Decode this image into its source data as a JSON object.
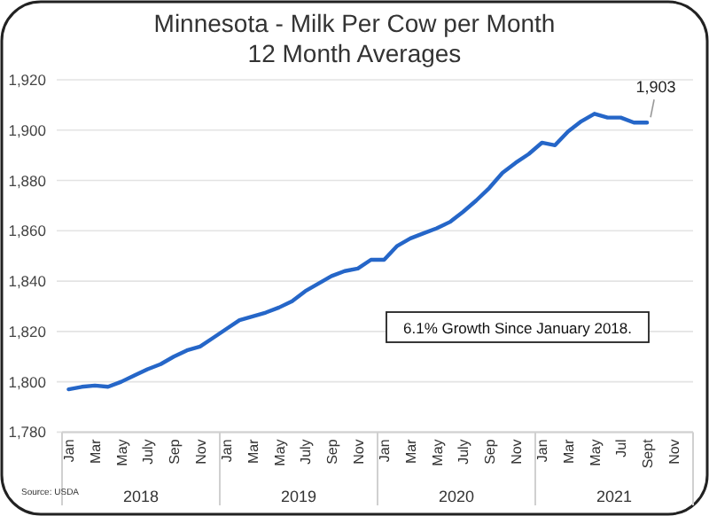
{
  "chart_data": {
    "type": "line",
    "title": "Minnesota - Milk Per Cow per Month\n12 Month Averages",
    "categories": [
      "Jan",
      null,
      "Mar",
      null,
      "May",
      null,
      "July",
      null,
      "Sep",
      null,
      "Nov",
      null,
      "Jan",
      null,
      "Mar",
      null,
      "May",
      null,
      "July",
      null,
      "Sep",
      null,
      "Nov",
      null,
      "Jan",
      null,
      "Mar",
      null,
      "May",
      null,
      "July",
      null,
      "Sep",
      null,
      "Nov",
      null,
      "Jan",
      null,
      "Mar",
      null,
      "May",
      null,
      "Jul",
      null,
      "Sept",
      null,
      "Nov",
      null
    ],
    "series": [
      {
        "color": "#2566c8",
        "values": [
          1797,
          1798,
          1798.5,
          1798,
          1800,
          1802.5,
          1805,
          1807,
          1810,
          1812.5,
          1814,
          1817.5,
          1821,
          1824.5,
          1826,
          1827.5,
          1829.5,
          1832,
          1836,
          1839,
          1842,
          1844,
          1845,
          1848.5,
          1848.5,
          1854,
          1857,
          1859,
          1861,
          1863.5,
          1867.5,
          1872,
          1877,
          1883,
          1887,
          1890.5,
          1895,
          1894,
          1899.5,
          1903.5,
          1906.5,
          1905,
          1905,
          1903,
          1903,
          null,
          null,
          null
        ],
        "value_labels": [
          null,
          null,
          null,
          null,
          null,
          null,
          null,
          null,
          null,
          null,
          null,
          null,
          null,
          null,
          null,
          null,
          null,
          null,
          null,
          null,
          null,
          null,
          null,
          null,
          null,
          null,
          null,
          null,
          null,
          null,
          null,
          null,
          null,
          null,
          null,
          null,
          null,
          null,
          null,
          null,
          null,
          null,
          null,
          null,
          "1,903",
          null,
          null,
          null
        ]
      }
    ],
    "ylim": [
      1780,
      1920
    ],
    "yticks": [
      {
        "value": 1780,
        "label": "1,780"
      },
      {
        "value": 1800,
        "label": "1,800"
      },
      {
        "value": 1820,
        "label": "1,820"
      },
      {
        "value": 1840,
        "label": "1,840"
      },
      {
        "value": 1860,
        "label": "1,860"
      },
      {
        "value": 1880,
        "label": "1,880"
      },
      {
        "value": 1900,
        "label": "1,900"
      },
      {
        "value": 1920,
        "label": "1,920"
      }
    ],
    "grid": "y",
    "marker": "none",
    "line_style": "solid",
    "annotations": [
      "6.1% Growth Since January 2018.",
      "Source: USDA",
      "2018",
      "2019",
      "2020",
      "2021"
    ]
  }
}
